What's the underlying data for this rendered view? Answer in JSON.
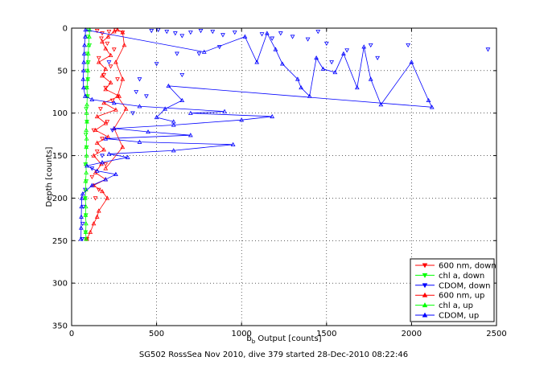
{
  "chart_data": {
    "type": "scatter",
    "xlabel_base": "b",
    "xlabel_sub": "b",
    "xlabel_rest": " Output [counts]",
    "ylabel": "Depth [counts]",
    "caption": "SG502 RossSea Nov 2010, dive 379 started 28-Dec-2010 08:22:46",
    "xlim": [
      0,
      2500
    ],
    "ylim": [
      0,
      350
    ],
    "y_reversed": true,
    "grid": true,
    "xticks": [
      "0",
      "500",
      "1000",
      "1500",
      "2000",
      "2500"
    ],
    "yticks": [
      "0",
      "50",
      "100",
      "150",
      "200",
      "250",
      "300",
      "350"
    ],
    "legend_position": "bottom-right",
    "series": [
      {
        "name": "600 nm, down",
        "color": "#ff0000",
        "marker": "triangle-down",
        "connected": false,
        "points": [
          [
            150,
            3
          ],
          [
            180,
            6
          ],
          [
            220,
            4
          ],
          [
            260,
            2
          ],
          [
            300,
            5
          ],
          [
            175,
            12
          ],
          [
            210,
            18
          ],
          [
            250,
            25
          ],
          [
            160,
            35
          ],
          [
            230,
            45
          ],
          [
            190,
            55
          ],
          [
            270,
            60
          ],
          [
            200,
            70
          ],
          [
            240,
            85
          ],
          [
            170,
            95
          ],
          [
            210,
            110
          ],
          [
            130,
            120
          ],
          [
            180,
            130
          ],
          [
            150,
            145
          ],
          [
            200,
            160
          ],
          [
            120,
            175
          ],
          [
            160,
            190
          ],
          [
            140,
            200
          ],
          [
            90,
            248
          ]
        ]
      },
      {
        "name": "chl a, down",
        "color": "#00ff00",
        "marker": "triangle-down",
        "connected": false,
        "points": [
          [
            100,
            2
          ],
          [
            95,
            10
          ],
          [
            105,
            20
          ],
          [
            92,
            30
          ],
          [
            98,
            40
          ],
          [
            90,
            50
          ],
          [
            96,
            60
          ],
          [
            88,
            70
          ],
          [
            94,
            80
          ],
          [
            86,
            95
          ],
          [
            90,
            110
          ],
          [
            84,
            125
          ],
          [
            88,
            140
          ],
          [
            82,
            160
          ],
          [
            86,
            180
          ],
          [
            80,
            200
          ],
          [
            84,
            220
          ],
          [
            82,
            240
          ],
          [
            85,
            248
          ]
        ]
      },
      {
        "name": "CDOM, down",
        "color": "#0000ff",
        "marker": "triangle-down",
        "connected": false,
        "points": [
          [
            470,
            3
          ],
          [
            510,
            2
          ],
          [
            560,
            4
          ],
          [
            610,
            6
          ],
          [
            650,
            9
          ],
          [
            700,
            5
          ],
          [
            760,
            3
          ],
          [
            830,
            4
          ],
          [
            890,
            8
          ],
          [
            960,
            5
          ],
          [
            1120,
            7
          ],
          [
            1180,
            12
          ],
          [
            1230,
            6
          ],
          [
            1300,
            10
          ],
          [
            1390,
            13
          ],
          [
            1450,
            4
          ],
          [
            1500,
            18
          ],
          [
            1530,
            40
          ],
          [
            1620,
            26
          ],
          [
            1760,
            20
          ],
          [
            1800,
            35
          ],
          [
            1980,
            20
          ],
          [
            2450,
            25
          ],
          [
            870,
            22
          ],
          [
            620,
            30
          ],
          [
            500,
            42
          ],
          [
            650,
            55
          ],
          [
            750,
            30
          ],
          [
            400,
            60
          ],
          [
            380,
            75
          ],
          [
            440,
            80
          ],
          [
            360,
            100
          ],
          [
            220,
            40
          ],
          [
            240,
            120
          ],
          [
            180,
            150
          ],
          [
            120,
            165
          ],
          [
            80,
            190
          ],
          [
            70,
            210
          ],
          [
            65,
            230
          ],
          [
            62,
            248
          ]
        ]
      },
      {
        "name": "600 nm, up",
        "color": "#ff0000",
        "marker": "triangle-up",
        "connected": true,
        "points": [
          [
            90,
            248
          ],
          [
            110,
            240
          ],
          [
            130,
            230
          ],
          [
            150,
            222
          ],
          [
            160,
            215
          ],
          [
            210,
            200
          ],
          [
            180,
            192
          ],
          [
            130,
            185
          ],
          [
            200,
            178
          ],
          [
            140,
            170
          ],
          [
            175,
            160
          ],
          [
            130,
            150
          ],
          [
            190,
            143
          ],
          [
            150,
            135
          ],
          [
            215,
            128
          ],
          [
            140,
            120
          ],
          [
            200,
            112
          ],
          [
            150,
            104
          ],
          [
            260,
            96
          ],
          [
            190,
            88
          ],
          [
            280,
            80
          ],
          [
            200,
            72
          ],
          [
            230,
            64
          ],
          [
            180,
            56
          ],
          [
            200,
            48
          ],
          [
            160,
            40
          ],
          [
            230,
            32
          ],
          [
            200,
            24
          ],
          [
            180,
            16
          ],
          [
            215,
            10
          ],
          [
            250,
            4
          ],
          [
            270,
            2
          ],
          [
            300,
            5
          ],
          [
            310,
            20
          ],
          [
            260,
            40
          ],
          [
            300,
            60
          ],
          [
            270,
            80
          ],
          [
            320,
            95
          ],
          [
            250,
            118
          ],
          [
            300,
            140
          ],
          [
            200,
            165
          ]
        ]
      },
      {
        "name": "chl a, up",
        "color": "#00ff00",
        "marker": "triangle-up",
        "connected": true,
        "points": [
          [
            85,
            248
          ],
          [
            83,
            240
          ],
          [
            85,
            230
          ],
          [
            82,
            220
          ],
          [
            84,
            210
          ],
          [
            80,
            200
          ],
          [
            84,
            190
          ],
          [
            82,
            180
          ],
          [
            86,
            170
          ],
          [
            84,
            160
          ],
          [
            88,
            150
          ],
          [
            86,
            140
          ],
          [
            88,
            130
          ],
          [
            86,
            120
          ],
          [
            90,
            110
          ],
          [
            88,
            100
          ],
          [
            90,
            90
          ],
          [
            92,
            80
          ],
          [
            90,
            70
          ],
          [
            94,
            60
          ],
          [
            96,
            50
          ],
          [
            94,
            40
          ],
          [
            98,
            30
          ],
          [
            100,
            20
          ],
          [
            104,
            10
          ],
          [
            106,
            2
          ]
        ]
      },
      {
        "name": "CDOM, up",
        "color": "#0000ff",
        "marker": "triangle-up",
        "connected": true,
        "points": [
          [
            55,
            248
          ],
          [
            56,
            235
          ],
          [
            57,
            222
          ],
          [
            58,
            210
          ],
          [
            60,
            200
          ],
          [
            65,
            195
          ],
          [
            120,
            185
          ],
          [
            200,
            178
          ],
          [
            260,
            172
          ],
          [
            150,
            168
          ],
          [
            90,
            162
          ],
          [
            180,
            158
          ],
          [
            330,
            152
          ],
          [
            220,
            148
          ],
          [
            600,
            144
          ],
          [
            950,
            137
          ],
          [
            400,
            134
          ],
          [
            200,
            130
          ],
          [
            700,
            126
          ],
          [
            450,
            122
          ],
          [
            250,
            118
          ],
          [
            600,
            114
          ],
          [
            1000,
            108
          ],
          [
            1180,
            104
          ],
          [
            700,
            100
          ],
          [
            900,
            98
          ],
          [
            400,
            92
          ],
          [
            250,
            88
          ],
          [
            120,
            84
          ],
          [
            80,
            80
          ],
          [
            70,
            70
          ],
          [
            68,
            60
          ],
          [
            70,
            50
          ],
          [
            72,
            40
          ],
          [
            74,
            30
          ],
          [
            76,
            20
          ],
          [
            80,
            10
          ],
          [
            82,
            2
          ],
          [
            780,
            28
          ],
          [
            1020,
            10
          ],
          [
            1090,
            40
          ],
          [
            1150,
            6
          ],
          [
            1200,
            25
          ],
          [
            1240,
            42
          ],
          [
            1330,
            60
          ],
          [
            1350,
            70
          ],
          [
            1400,
            80
          ],
          [
            1440,
            35
          ],
          [
            1480,
            48
          ],
          [
            1550,
            52
          ],
          [
            1600,
            30
          ],
          [
            1680,
            70
          ],
          [
            1720,
            22
          ],
          [
            1760,
            60
          ],
          [
            1820,
            90
          ],
          [
            2000,
            40
          ],
          [
            2100,
            85
          ],
          [
            2120,
            93
          ],
          [
            570,
            68
          ],
          [
            650,
            85
          ],
          [
            550,
            95
          ],
          [
            500,
            105
          ],
          [
            600,
            110
          ]
        ]
      }
    ]
  }
}
